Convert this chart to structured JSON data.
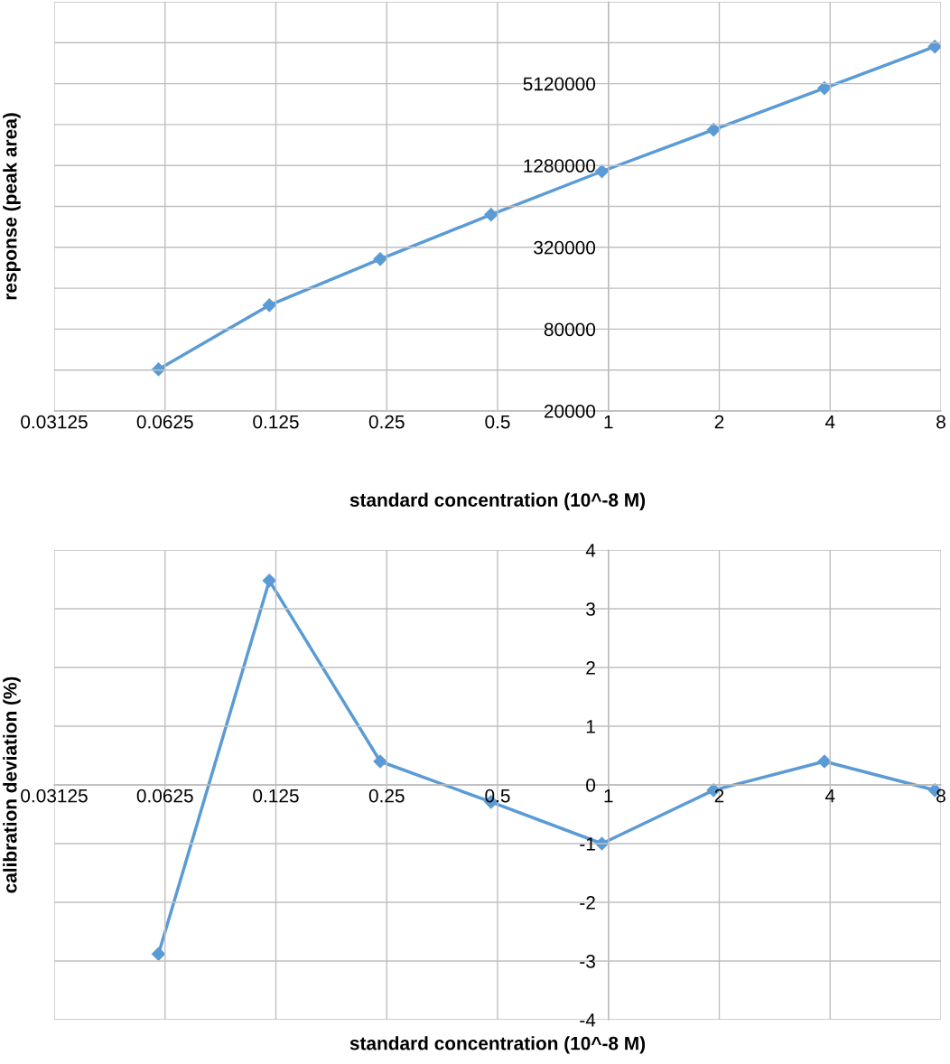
{
  "chart_data": [
    {
      "type": "line",
      "xlabel": "standard concentration (10^-8 M)",
      "ylabel": "response (peak area)",
      "log": "xy",
      "grid": true,
      "marker": "diamond",
      "line_style": "solid",
      "xlim": [
        0.03125,
        8
      ],
      "xticks": [
        0.03125,
        0.0625,
        0.125,
        0.25,
        0.5,
        1,
        2,
        4,
        8
      ],
      "ylim": [
        20000,
        20480000
      ],
      "yticks": [
        20000,
        {
          "value": 40000,
          "label": null
        },
        80000,
        {
          "value": 160000,
          "label": null
        },
        320000,
        {
          "value": 640000,
          "label": null
        },
        1280000,
        {
          "value": 2560000,
          "label": null
        },
        5120000,
        {
          "value": 10240000,
          "label": null
        },
        {
          "value": 20480000,
          "label": null
        }
      ],
      "series": [
        {
          "color": "#5b9bd5",
          "x": [
            0.06,
            0.12,
            0.24,
            0.48,
            0.96,
            1.93,
            3.86,
            7.7
          ],
          "values": [
            40500,
            120000,
            262000,
            556000,
            1158000,
            2344000,
            4745000,
            9596000
          ]
        }
      ]
    },
    {
      "type": "line",
      "xlabel": "standard concentration (10^-8 M)",
      "ylabel": "calibration deviation (%)",
      "log": "x",
      "grid": true,
      "marker": "diamond",
      "line_style": "solid",
      "xlim": [
        0.03125,
        8
      ],
      "xticks": [
        0.03125,
        0.0625,
        0.125,
        0.25,
        0.5,
        1,
        2,
        4,
        8
      ],
      "ylim": [
        -4,
        4
      ],
      "yticks": [
        -4,
        -3,
        -2,
        -1,
        0,
        1,
        2,
        3,
        4
      ],
      "series": [
        {
          "color": "#5b9bd5",
          "x": [
            0.06,
            0.12,
            0.24,
            0.48,
            0.96,
            1.93,
            3.86,
            7.7
          ],
          "values": [
            -2.88,
            3.48,
            0.4,
            -0.29,
            -1.0,
            -0.09,
            0.4,
            -0.09
          ]
        }
      ]
    }
  ]
}
